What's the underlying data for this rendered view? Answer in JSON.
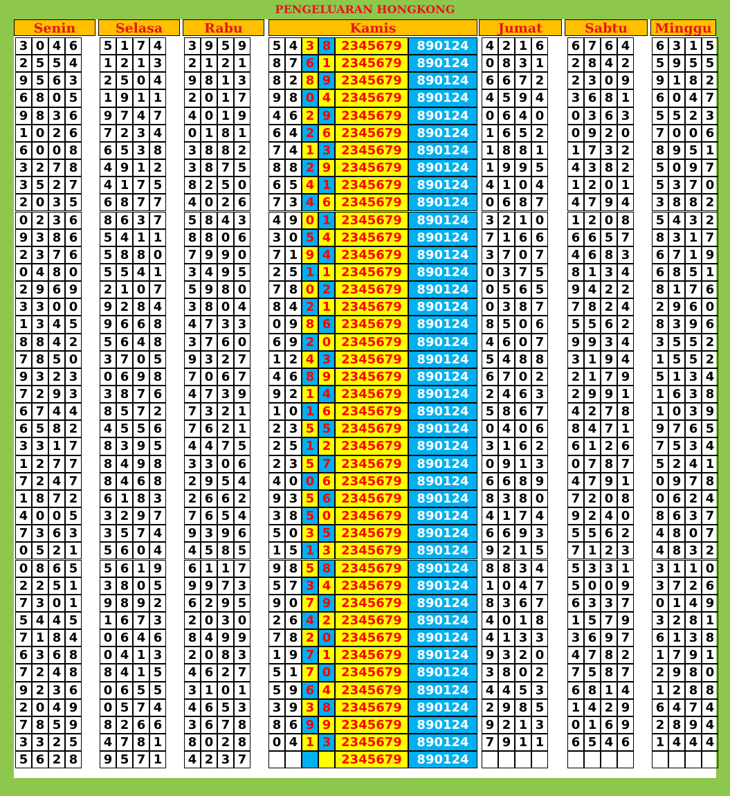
{
  "title": "PENGELUARAN HONGKONG",
  "days": [
    "Senin",
    "Selasa",
    "Rabu",
    "Kamis",
    "Jumat",
    "Sabtu",
    "Minggu"
  ],
  "kamis_fixed_a": "2345679",
  "kamis_fixed_b": "890124",
  "colors": {
    "background": "#8dc74c",
    "header": "#ffc000",
    "header_text": "#e8141b",
    "yellow": "#ffff00",
    "blue": "#00b0f0",
    "fixed_text": "#ff0000",
    "fixed_b_text": "#ffffff"
  },
  "columns": {
    "senin": [
      "3046",
      "2554",
      "9563",
      "6805",
      "9836",
      "1026",
      "6008",
      "3278",
      "3527",
      "2035",
      "0236",
      "9386",
      "2376",
      "0480",
      "2969",
      "3300",
      "1345",
      "8842",
      "7850",
      "9323",
      "7293",
      "6744",
      "6582",
      "3317",
      "1277",
      "7247",
      "1872",
      "4005",
      "7363",
      "0521",
      "0865",
      "2251",
      "7301",
      "5445",
      "7184",
      "6368",
      "7248",
      "9236",
      "2049",
      "7859",
      "3325",
      "5628"
    ],
    "selasa": [
      "5174",
      "1213",
      "2504",
      "1911",
      "9747",
      "7234",
      "6538",
      "4912",
      "4175",
      "6877",
      "8637",
      "5411",
      "5880",
      "5541",
      "2107",
      "9284",
      "9668",
      "5648",
      "3705",
      "0698",
      "3876",
      "8572",
      "4556",
      "8395",
      "8498",
      "8468",
      "6183",
      "3297",
      "3574",
      "5604",
      "5619",
      "3805",
      "9892",
      "1673",
      "0646",
      "0413",
      "8415",
      "0655",
      "0574",
      "8266",
      "4781",
      "9571"
    ],
    "rabu": [
      "3959",
      "2121",
      "9813",
      "2017",
      "4019",
      "0181",
      "3882",
      "3875",
      "8250",
      "4026",
      "5843",
      "8806",
      "7990",
      "3495",
      "5980",
      "3804",
      "4733",
      "3760",
      "9327",
      "7067",
      "4739",
      "7321",
      "7621",
      "4475",
      "3306",
      "2954",
      "2662",
      "7654",
      "9396",
      "4585",
      "6117",
      "9973",
      "6295",
      "2030",
      "8499",
      "2083",
      "4627",
      "3101",
      "4653",
      "3678",
      "8028",
      "4237"
    ],
    "kamis": [
      "5438",
      "8761",
      "8289",
      "9804",
      "4629",
      "6426",
      "7413",
      "8829",
      "6541",
      "7346",
      "4901",
      "3054",
      "7194",
      "2511",
      "7802",
      "8421",
      "0986",
      "6920",
      "1243",
      "4689",
      "9214",
      "1016",
      "2355",
      "2512",
      "2357",
      "4006",
      "9356",
      "3850",
      "5035",
      "1513",
      "9858",
      "5734",
      "9079",
      "2642",
      "7820",
      "1971",
      "5170",
      "5964",
      "3938",
      "8699",
      "0413",
      ""
    ],
    "jumat": [
      "4216",
      "0831",
      "6672",
      "4594",
      "0640",
      "1652",
      "1881",
      "1995",
      "4104",
      "0687",
      "3210",
      "7166",
      "3707",
      "0375",
      "0565",
      "0387",
      "8506",
      "4607",
      "5488",
      "6702",
      "2463",
      "5867",
      "0406",
      "3162",
      "0913",
      "6689",
      "8380",
      "4174",
      "6693",
      "9215",
      "8834",
      "1047",
      "8367",
      "4018",
      "4133",
      "9320",
      "3802",
      "4453",
      "2985",
      "9213",
      "7911",
      ""
    ],
    "sabtu": [
      "6764",
      "2842",
      "2309",
      "3681",
      "0363",
      "0920",
      "1732",
      "4382",
      "1201",
      "4794",
      "1208",
      "6657",
      "4683",
      "8134",
      "9422",
      "7824",
      "5562",
      "9934",
      "3194",
      "2179",
      "2991",
      "4278",
      "8471",
      "6126",
      "0787",
      "4791",
      "7208",
      "9240",
      "5562",
      "7123",
      "5331",
      "5009",
      "6337",
      "1579",
      "3697",
      "4782",
      "7587",
      "6814",
      "1429",
      "0169",
      "6546",
      ""
    ],
    "minggu": [
      "6315",
      "5955",
      "9182",
      "6047",
      "5523",
      "7006",
      "8951",
      "5097",
      "5370",
      "3882",
      "5432",
      "8317",
      "6719",
      "6851",
      "8176",
      "2960",
      "8396",
      "3552",
      "1552",
      "5134",
      "1638",
      "1039",
      "9765",
      "7534",
      "5241",
      "0978",
      "0624",
      "8637",
      "4807",
      "4832",
      "3110",
      "3726",
      "0149",
      "3281",
      "6138",
      "1791",
      "2980",
      "1288",
      "6474",
      "2894",
      "1444",
      ""
    ]
  }
}
